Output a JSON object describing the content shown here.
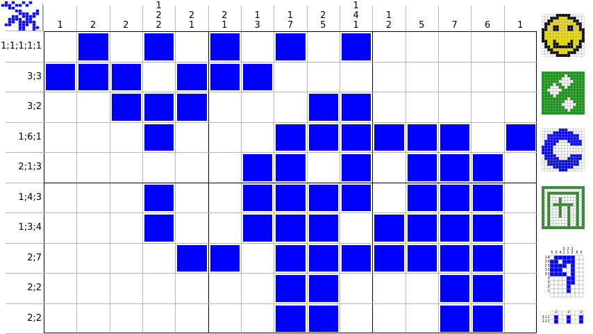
{
  "colors": {
    "filled": "#0000ff",
    "grid": "#b4b4b4",
    "thick": "#000000"
  },
  "puzzle": {
    "columns": 15,
    "rows": 10,
    "column_clues": [
      [
        "1"
      ],
      [
        "2"
      ],
      [
        "2"
      ],
      [
        "1",
        "2",
        "2"
      ],
      [
        "2",
        "1"
      ],
      [
        "2",
        "1"
      ],
      [
        "1",
        "3"
      ],
      [
        "1",
        "7"
      ],
      [
        "2",
        "5"
      ],
      [
        "1",
        "4",
        "1"
      ],
      [
        "1",
        "2"
      ],
      [
        "5"
      ],
      [
        "7"
      ],
      [
        "6"
      ],
      [
        "1"
      ]
    ],
    "row_clues": [
      "1;1;1;1;1",
      "3;3",
      "3;2",
      "1;6;1",
      "2;1;3",
      "1;4;3",
      "1;3;4",
      "2;7",
      "2;2",
      "2;2"
    ],
    "filled": [
      [
        1,
        3,
        5,
        7,
        9
      ],
      [
        0,
        1,
        2,
        4,
        5,
        6
      ],
      [
        2,
        3,
        4,
        8,
        9
      ],
      [
        3,
        7,
        8,
        9,
        10,
        11,
        12,
        14
      ],
      [
        6,
        7,
        9,
        11,
        12,
        13
      ],
      [
        3,
        6,
        7,
        8,
        9,
        11,
        12,
        13
      ],
      [
        3,
        6,
        7,
        8,
        10,
        11,
        12,
        13
      ],
      [
        4,
        5,
        7,
        8,
        9,
        10,
        11,
        12,
        13
      ],
      [
        7,
        8,
        12,
        13
      ],
      [
        7,
        8,
        12,
        13
      ]
    ]
  },
  "sidebar": {
    "thumbnails": [
      {
        "name": "smiley",
        "mini_clues": []
      },
      {
        "name": "green-flowers",
        "mini_clues": []
      },
      {
        "name": "blue-ring",
        "mini_clues": []
      },
      {
        "name": "green-runner",
        "mini_clues": []
      },
      {
        "name": "blue-nine",
        "mini_clues": [
          "5",
          "3",
          "4",
          "3 1",
          "2 1",
          "2 2",
          "8",
          "5",
          "1 4",
          "1 6",
          "2 3",
          "3 3",
          "3 3",
          "3",
          "3",
          "2",
          "1"
        ]
      },
      {
        "name": "blue-dots",
        "mini_clues": [
          "2",
          "2",
          "2",
          "1 1 1",
          "1 1 1"
        ]
      }
    ]
  }
}
